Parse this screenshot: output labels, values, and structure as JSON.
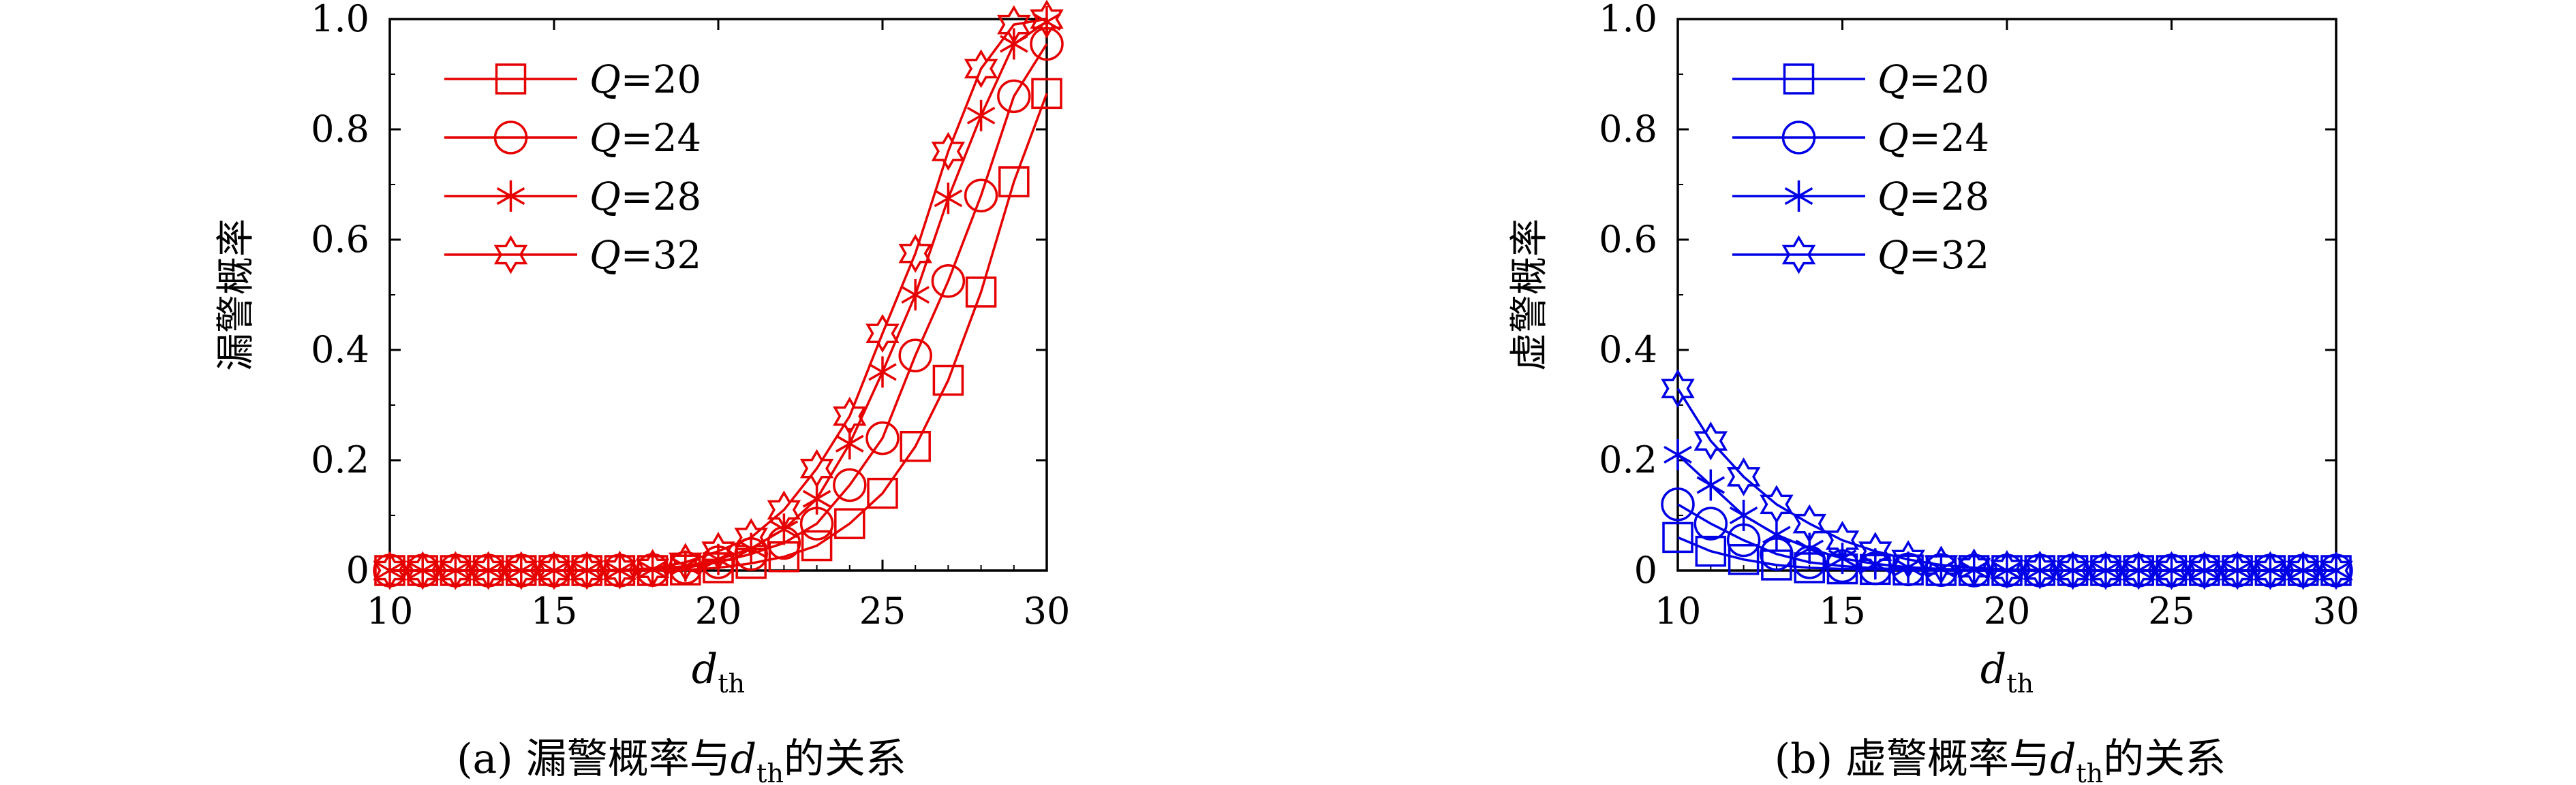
{
  "chart_data": [
    {
      "type": "line",
      "caption_prefix": "(a) 漏警概率与",
      "caption_var": "d",
      "caption_sub": "th",
      "caption_suffix": "的关系",
      "xlabel_var": "d",
      "xlabel_sub": "th",
      "ylabel": "漏警概率",
      "xlim": [
        10,
        30
      ],
      "ylim": [
        0,
        1.0
      ],
      "xticks": [
        "10",
        "15",
        "20",
        "25",
        "30"
      ],
      "yticks": [
        "0",
        "0.2",
        "0.4",
        "0.6",
        "0.8",
        "1.0"
      ],
      "color": "#e60000",
      "legend_position": "top-left",
      "x": [
        10,
        11,
        12,
        13,
        14,
        15,
        16,
        17,
        18,
        19,
        20,
        21,
        22,
        23,
        24,
        25,
        26,
        27,
        28,
        29,
        30
      ],
      "series": [
        {
          "name": "Q=20",
          "var": "Q",
          "val": "=20",
          "marker": "square",
          "values": [
            0,
            0,
            0,
            0,
            0,
            0,
            0,
            0,
            0,
            0.001,
            0.005,
            0.013,
            0.025,
            0.045,
            0.085,
            0.14,
            0.225,
            0.345,
            0.505,
            0.705,
            0.865
          ]
        },
        {
          "name": "Q=24",
          "var": "Q",
          "val": "=24",
          "marker": "circle",
          "values": [
            0,
            0,
            0,
            0,
            0,
            0,
            0,
            0,
            0.001,
            0.005,
            0.015,
            0.03,
            0.05,
            0.085,
            0.155,
            0.24,
            0.39,
            0.525,
            0.68,
            0.86,
            0.955
          ]
        },
        {
          "name": "Q=28",
          "var": "Q",
          "val": "=28",
          "marker": "star6",
          "values": [
            0,
            0,
            0,
            0,
            0,
            0,
            0,
            0,
            0.002,
            0.008,
            0.02,
            0.04,
            0.075,
            0.13,
            0.23,
            0.36,
            0.5,
            0.675,
            0.825,
            0.955,
            0.995
          ]
        },
        {
          "name": "Q=32",
          "var": "Q",
          "val": "=32",
          "marker": "hexagram",
          "values": [
            0,
            0,
            0,
            0,
            0,
            0,
            0,
            0.001,
            0.004,
            0.015,
            0.035,
            0.06,
            0.11,
            0.185,
            0.28,
            0.43,
            0.575,
            0.76,
            0.91,
            0.99,
            1.0
          ]
        }
      ]
    },
    {
      "type": "line",
      "caption_prefix": "(b) 虚警概率与",
      "caption_var": "d",
      "caption_sub": "th",
      "caption_suffix": "的关系",
      "xlabel_var": "d",
      "xlabel_sub": "th",
      "ylabel": "虚警概率",
      "xlim": [
        10,
        30
      ],
      "ylim": [
        0,
        1.0
      ],
      "xticks": [
        "10",
        "15",
        "20",
        "25",
        "30"
      ],
      "yticks": [
        "0",
        "0.2",
        "0.4",
        "0.6",
        "0.8",
        "1.0"
      ],
      "color": "#0000e6",
      "legend_position": "top-left",
      "x": [
        10,
        11,
        12,
        13,
        14,
        15,
        16,
        17,
        18,
        19,
        20,
        21,
        22,
        23,
        24,
        25,
        26,
        27,
        28,
        29,
        30
      ],
      "series": [
        {
          "name": "Q=20",
          "var": "Q",
          "val": "=20",
          "marker": "square",
          "values": [
            0.06,
            0.035,
            0.02,
            0.01,
            0.005,
            0.003,
            0.002,
            0.001,
            0,
            0,
            0,
            0,
            0,
            0,
            0,
            0,
            0,
            0,
            0,
            0,
            0
          ]
        },
        {
          "name": "Q=24",
          "var": "Q",
          "val": "=24",
          "marker": "circle",
          "values": [
            0.12,
            0.085,
            0.055,
            0.03,
            0.015,
            0.008,
            0.004,
            0.002,
            0.001,
            0,
            0,
            0,
            0,
            0,
            0,
            0,
            0,
            0,
            0,
            0,
            0
          ]
        },
        {
          "name": "Q=28",
          "var": "Q",
          "val": "=28",
          "marker": "star6",
          "values": [
            0.21,
            0.155,
            0.1,
            0.065,
            0.04,
            0.022,
            0.012,
            0.006,
            0.003,
            0.001,
            0,
            0,
            0,
            0,
            0,
            0,
            0,
            0,
            0,
            0,
            0
          ]
        },
        {
          "name": "Q=32",
          "var": "Q",
          "val": "=32",
          "marker": "hexagram",
          "values": [
            0.33,
            0.235,
            0.17,
            0.12,
            0.085,
            0.055,
            0.035,
            0.02,
            0.01,
            0.005,
            0.002,
            0.001,
            0,
            0,
            0,
            0,
            0,
            0,
            0,
            0,
            0
          ]
        }
      ]
    }
  ]
}
